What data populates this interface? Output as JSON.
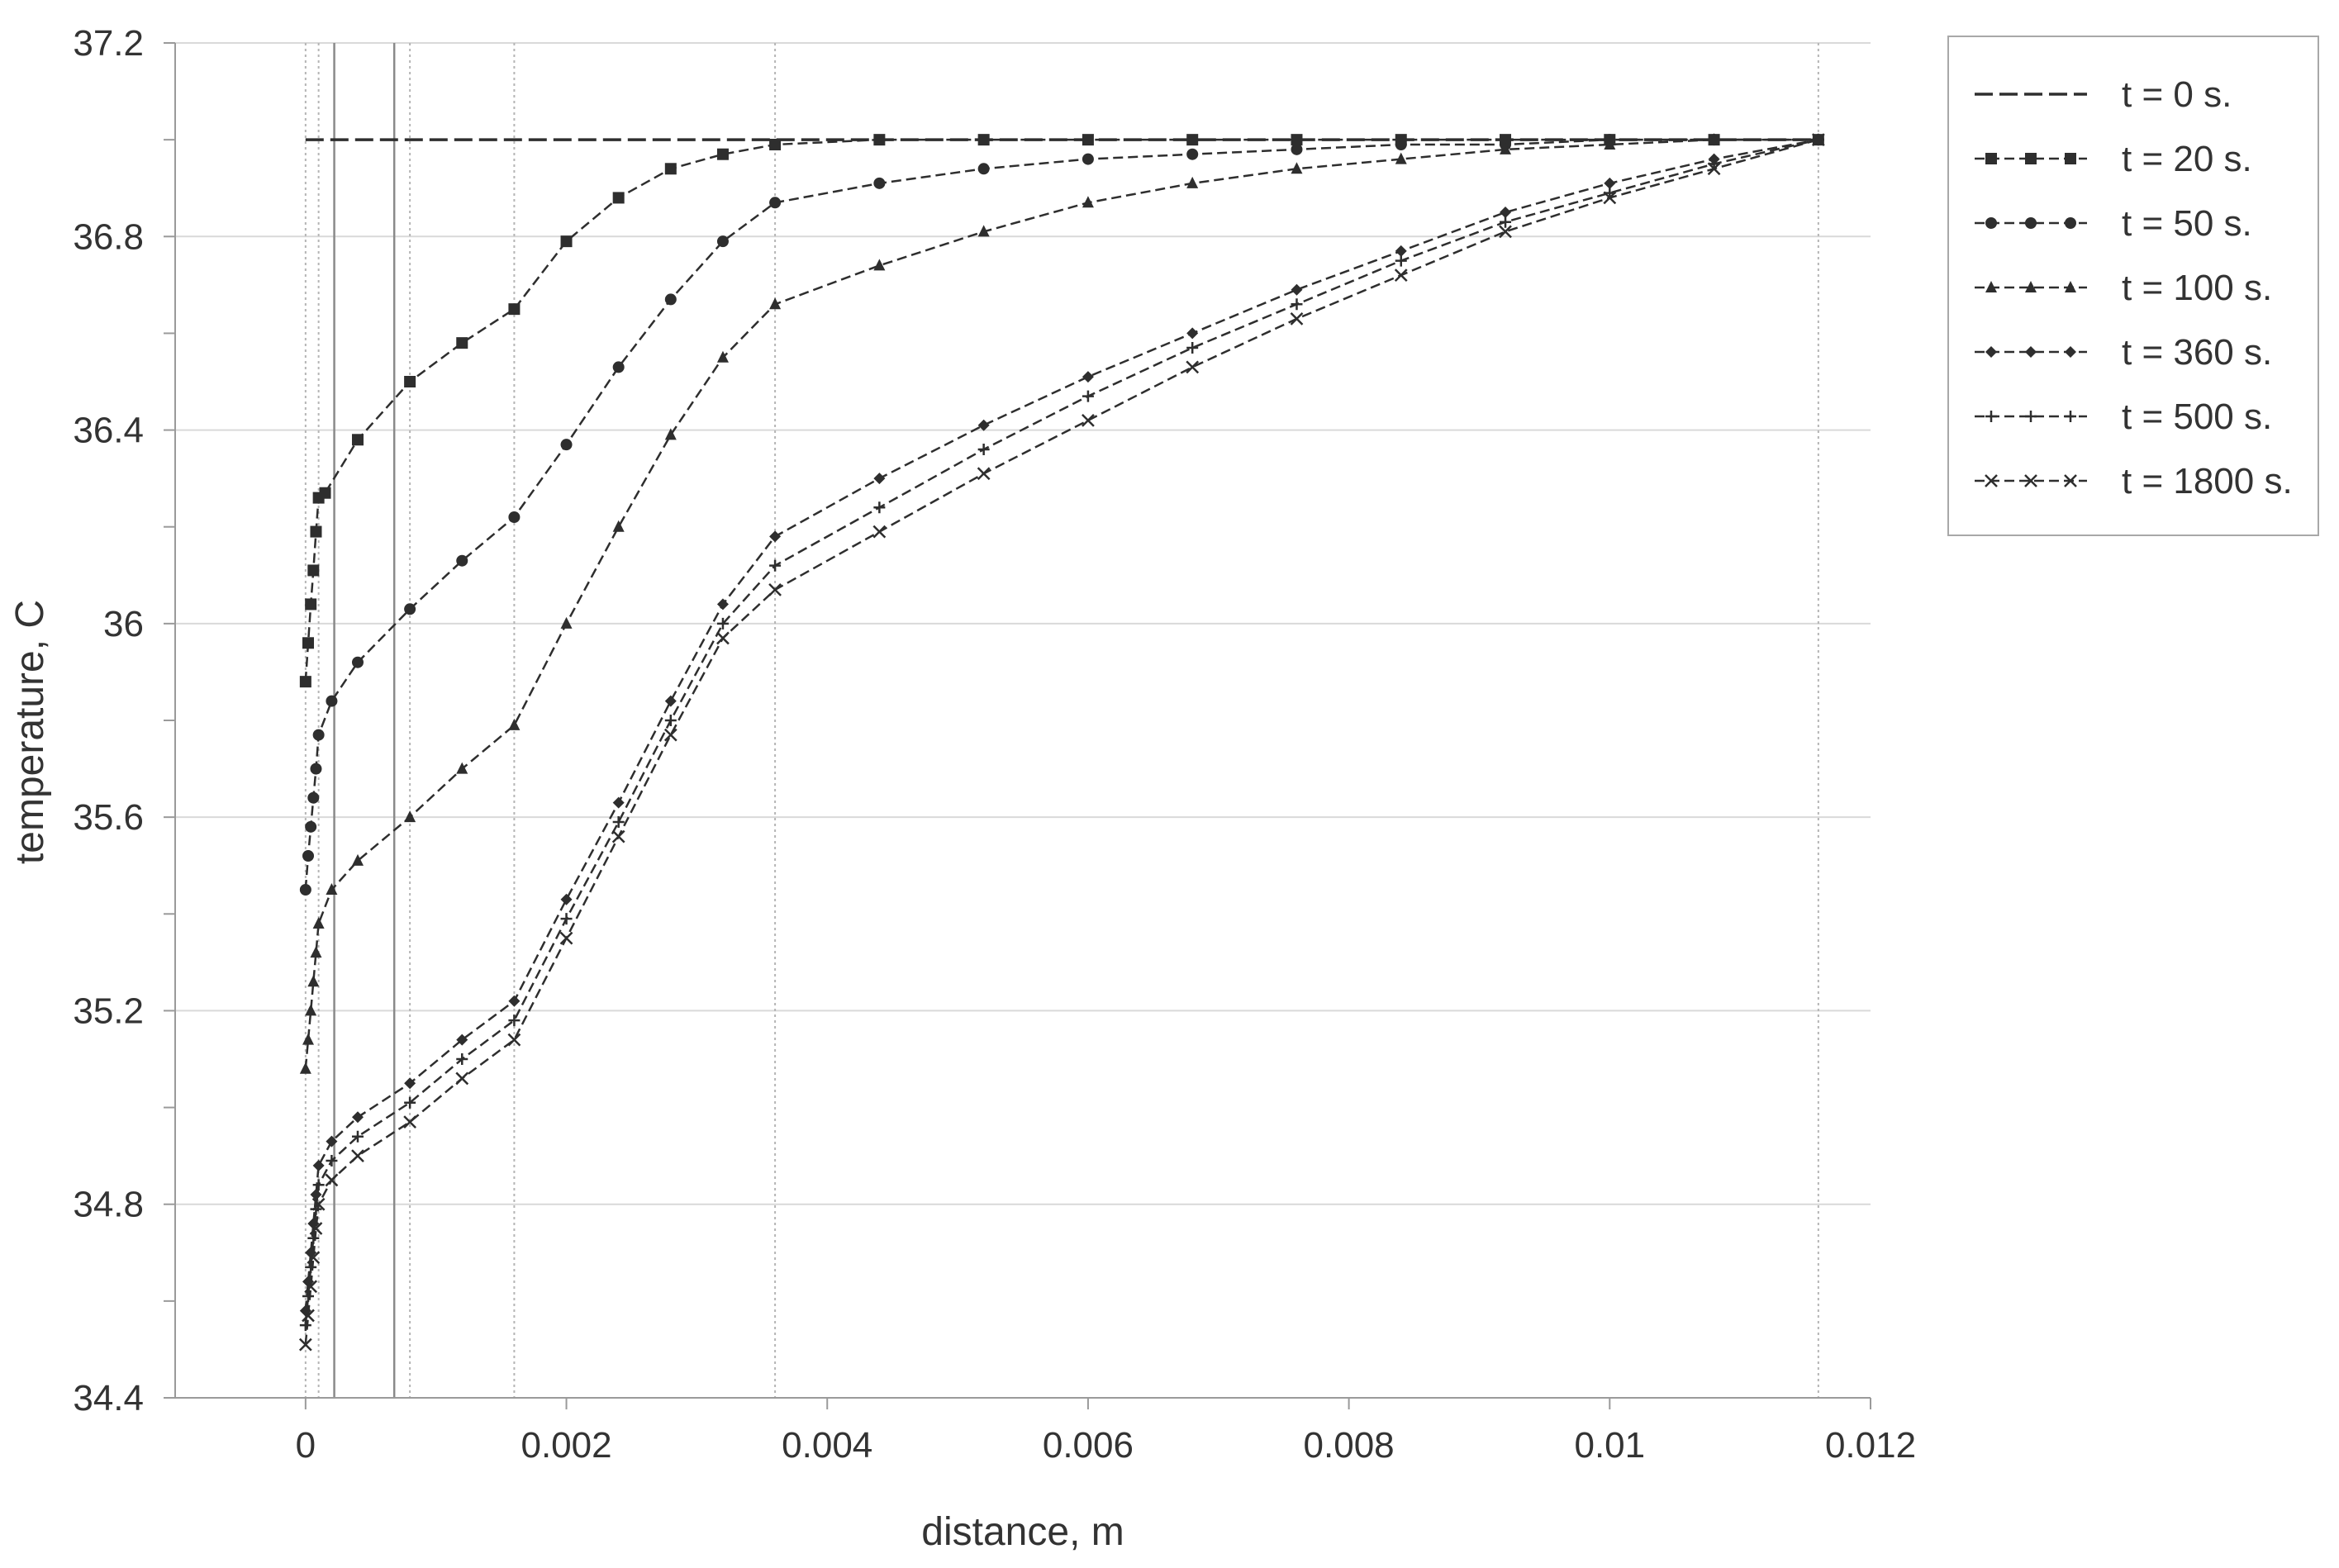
{
  "chart_data": {
    "type": "line",
    "title": "",
    "xlabel": "distance, m",
    "ylabel": "temperature, C",
    "xlim": [
      -0.001,
      0.012
    ],
    "ylim": [
      34.4,
      37.2
    ],
    "x_ticks": [
      0,
      0.002,
      0.004,
      0.006,
      0.008,
      0.01,
      0.012
    ],
    "x_tick_labels": [
      "0",
      "0.002",
      "0.004",
      "0.006",
      "0.008",
      "0.01",
      "0.012"
    ],
    "y_ticks": [
      34.4,
      34.8,
      35.2,
      35.6,
      36,
      36.4,
      36.8,
      37.2
    ],
    "y_tick_labels": [
      "34.4",
      "34.8",
      "35.2",
      "35.6",
      "36",
      "36.4",
      "36.8",
      "37.2"
    ],
    "grid": "horizontal",
    "legend_position": "top-right-outside",
    "vertical_reference_lines": {
      "dotted": [
        0,
        0.0001,
        0.0008,
        0.0016,
        0.0036,
        0.0116
      ],
      "solid": [
        0.00022,
        0.00068
      ]
    },
    "series": [
      {
        "name": "t = 0 s.",
        "marker": "none",
        "x": [
          0,
          0.0116
        ],
        "y": [
          37.0,
          37.0
        ]
      },
      {
        "name": "t = 20 s.",
        "marker": "square",
        "x": [
          0,
          2e-05,
          4e-05,
          6e-05,
          8e-05,
          0.0001,
          0.00015,
          0.0004,
          0.0008,
          0.0012,
          0.0016,
          0.002,
          0.0024,
          0.0028,
          0.0032,
          0.0036,
          0.0044,
          0.0052,
          0.006,
          0.0068,
          0.0076,
          0.0084,
          0.0092,
          0.01,
          0.0108,
          0.0116
        ],
        "y": [
          35.88,
          35.96,
          36.04,
          36.11,
          36.19,
          36.26,
          36.27,
          36.38,
          36.5,
          36.58,
          36.65,
          36.79,
          36.88,
          36.94,
          36.97,
          36.99,
          37.0,
          37.0,
          37.0,
          37.0,
          37.0,
          37.0,
          37.0,
          37.0,
          37.0,
          37.0
        ]
      },
      {
        "name": "t = 50 s.",
        "marker": "circle",
        "x": [
          0,
          2e-05,
          4e-05,
          6e-05,
          8e-05,
          0.0001,
          0.0002,
          0.0004,
          0.0008,
          0.0012,
          0.0016,
          0.002,
          0.0024,
          0.0028,
          0.0032,
          0.0036,
          0.0044,
          0.0052,
          0.006,
          0.0068,
          0.0076,
          0.0084,
          0.0092,
          0.01,
          0.0108,
          0.0116
        ],
        "y": [
          35.45,
          35.52,
          35.58,
          35.64,
          35.7,
          35.77,
          35.84,
          35.92,
          36.03,
          36.13,
          36.22,
          36.37,
          36.53,
          36.67,
          36.79,
          36.87,
          36.91,
          36.94,
          36.96,
          36.97,
          36.98,
          36.99,
          36.99,
          37.0,
          37.0,
          37.0
        ]
      },
      {
        "name": "t = 100 s.",
        "marker": "triangle",
        "x": [
          0,
          2e-05,
          4e-05,
          6e-05,
          8e-05,
          0.0001,
          0.0002,
          0.0004,
          0.0008,
          0.0012,
          0.0016,
          0.002,
          0.0024,
          0.0028,
          0.0032,
          0.0036,
          0.0044,
          0.0052,
          0.006,
          0.0068,
          0.0076,
          0.0084,
          0.0092,
          0.01,
          0.0108,
          0.0116
        ],
        "y": [
          35.08,
          35.14,
          35.2,
          35.26,
          35.32,
          35.38,
          35.45,
          35.51,
          35.6,
          35.7,
          35.79,
          36.0,
          36.2,
          36.39,
          36.55,
          36.66,
          36.74,
          36.81,
          36.87,
          36.91,
          36.94,
          36.96,
          36.98,
          36.99,
          37.0,
          37.0
        ]
      },
      {
        "name": "t = 360 s.",
        "marker": "diamond",
        "x": [
          0,
          2e-05,
          4e-05,
          6e-05,
          8e-05,
          0.0001,
          0.0002,
          0.0004,
          0.0008,
          0.0012,
          0.0016,
          0.002,
          0.0024,
          0.0028,
          0.0032,
          0.0036,
          0.0044,
          0.0052,
          0.006,
          0.0068,
          0.0076,
          0.0084,
          0.0092,
          0.01,
          0.0108,
          0.0116
        ],
        "y": [
          34.58,
          34.64,
          34.7,
          34.76,
          34.82,
          34.88,
          34.93,
          34.98,
          35.05,
          35.14,
          35.22,
          35.43,
          35.63,
          35.84,
          36.04,
          36.18,
          36.3,
          36.41,
          36.51,
          36.6,
          36.69,
          36.77,
          36.85,
          36.91,
          36.96,
          37.0
        ]
      },
      {
        "name": "t = 500 s.",
        "marker": "plus",
        "x": [
          0,
          2e-05,
          4e-05,
          6e-05,
          8e-05,
          0.0001,
          0.0002,
          0.0004,
          0.0008,
          0.0012,
          0.0016,
          0.002,
          0.0024,
          0.0028,
          0.0032,
          0.0036,
          0.0044,
          0.0052,
          0.006,
          0.0068,
          0.0076,
          0.0084,
          0.0092,
          0.01,
          0.0108,
          0.0116
        ],
        "y": [
          34.55,
          34.61,
          34.67,
          34.73,
          34.79,
          34.84,
          34.89,
          34.94,
          35.01,
          35.1,
          35.18,
          35.39,
          35.59,
          35.8,
          36.0,
          36.12,
          36.24,
          36.36,
          36.47,
          36.57,
          36.66,
          36.75,
          36.83,
          36.89,
          36.95,
          37.0
        ]
      },
      {
        "name": "t = 1800 s.",
        "marker": "cross",
        "x": [
          0,
          2e-05,
          4e-05,
          6e-05,
          8e-05,
          0.0001,
          0.0002,
          0.0004,
          0.0008,
          0.0012,
          0.0016,
          0.002,
          0.0024,
          0.0028,
          0.0032,
          0.0036,
          0.0044,
          0.0052,
          0.006,
          0.0068,
          0.0076,
          0.0084,
          0.0092,
          0.01,
          0.0108,
          0.0116
        ],
        "y": [
          34.51,
          34.57,
          34.63,
          34.69,
          34.75,
          34.8,
          34.85,
          34.9,
          34.97,
          35.06,
          35.14,
          35.35,
          35.56,
          35.77,
          35.97,
          36.07,
          36.19,
          36.31,
          36.42,
          36.53,
          36.63,
          36.72,
          36.81,
          36.88,
          36.94,
          37.0
        ]
      }
    ]
  }
}
